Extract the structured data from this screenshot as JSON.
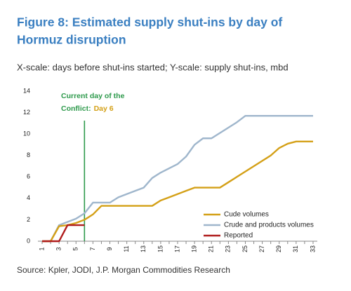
{
  "chart_data": {
    "type": "line",
    "title": "Figure 8: Estimated supply shut-ins by day of",
    "title_line2": "Hormuz disruption",
    "subtitle": "X-scale: days before shut-ins started; Y-scale: supply shut-ins, mbd",
    "source": "Source: Kpler, JODI, J.P. Morgan Commodities Research",
    "annotation": {
      "line1": "Current day of the",
      "line2a": "Conflict:",
      "line2b": "Day 6",
      "x": 6,
      "color": "#2e9a4c",
      "highlight": "#d4a017"
    },
    "x": [
      1,
      2,
      3,
      4,
      5,
      6,
      7,
      8,
      9,
      10,
      11,
      12,
      13,
      14,
      15,
      16,
      17,
      18,
      19,
      20,
      21,
      22,
      23,
      24,
      25,
      26,
      27,
      28,
      29,
      30,
      31,
      32,
      33
    ],
    "xlim": [
      0.5,
      33.5
    ],
    "xticks": [
      1,
      3,
      5,
      7,
      9,
      11,
      13,
      15,
      17,
      19,
      21,
      23,
      25,
      27,
      29,
      31,
      33
    ],
    "ylim": [
      0,
      14
    ],
    "yticks": [
      0,
      2,
      4,
      6,
      8,
      10,
      12,
      14
    ],
    "grid": false,
    "legend": "lower right",
    "series": [
      {
        "name": "Crude and products volumes",
        "color": "#9fb6cc",
        "values": [
          0,
          0,
          1.5,
          1.8,
          2.1,
          2.6,
          3.6,
          3.6,
          3.6,
          4.1,
          4.4,
          4.7,
          5.0,
          5.9,
          6.4,
          6.8,
          7.2,
          7.9,
          9.0,
          9.6,
          9.6,
          10.1,
          10.6,
          11.1,
          11.7,
          11.7,
          11.7,
          11.7,
          11.7,
          11.7,
          11.7,
          11.7,
          11.7
        ]
      },
      {
        "name": "Cude volumes",
        "color": "#d4a017",
        "values": [
          0,
          0,
          1.4,
          1.5,
          1.7,
          2.0,
          2.5,
          3.3,
          3.3,
          3.3,
          3.3,
          3.3,
          3.3,
          3.3,
          3.8,
          4.1,
          4.4,
          4.7,
          5.0,
          5.0,
          5.0,
          5.0,
          5.5,
          6.0,
          6.5,
          7.0,
          7.5,
          8.0,
          8.7,
          9.1,
          9.3,
          9.3,
          9.3
        ]
      },
      {
        "name": "Reported",
        "color": "#b01c1c",
        "values": [
          0,
          0,
          0,
          1.5,
          1.5,
          1.5,
          null,
          null,
          null,
          null,
          null,
          null,
          null,
          null,
          null,
          null,
          null,
          null,
          null,
          null,
          null,
          null,
          null,
          null,
          null,
          null,
          null,
          null,
          null,
          null,
          null,
          null,
          null
        ]
      }
    ]
  }
}
